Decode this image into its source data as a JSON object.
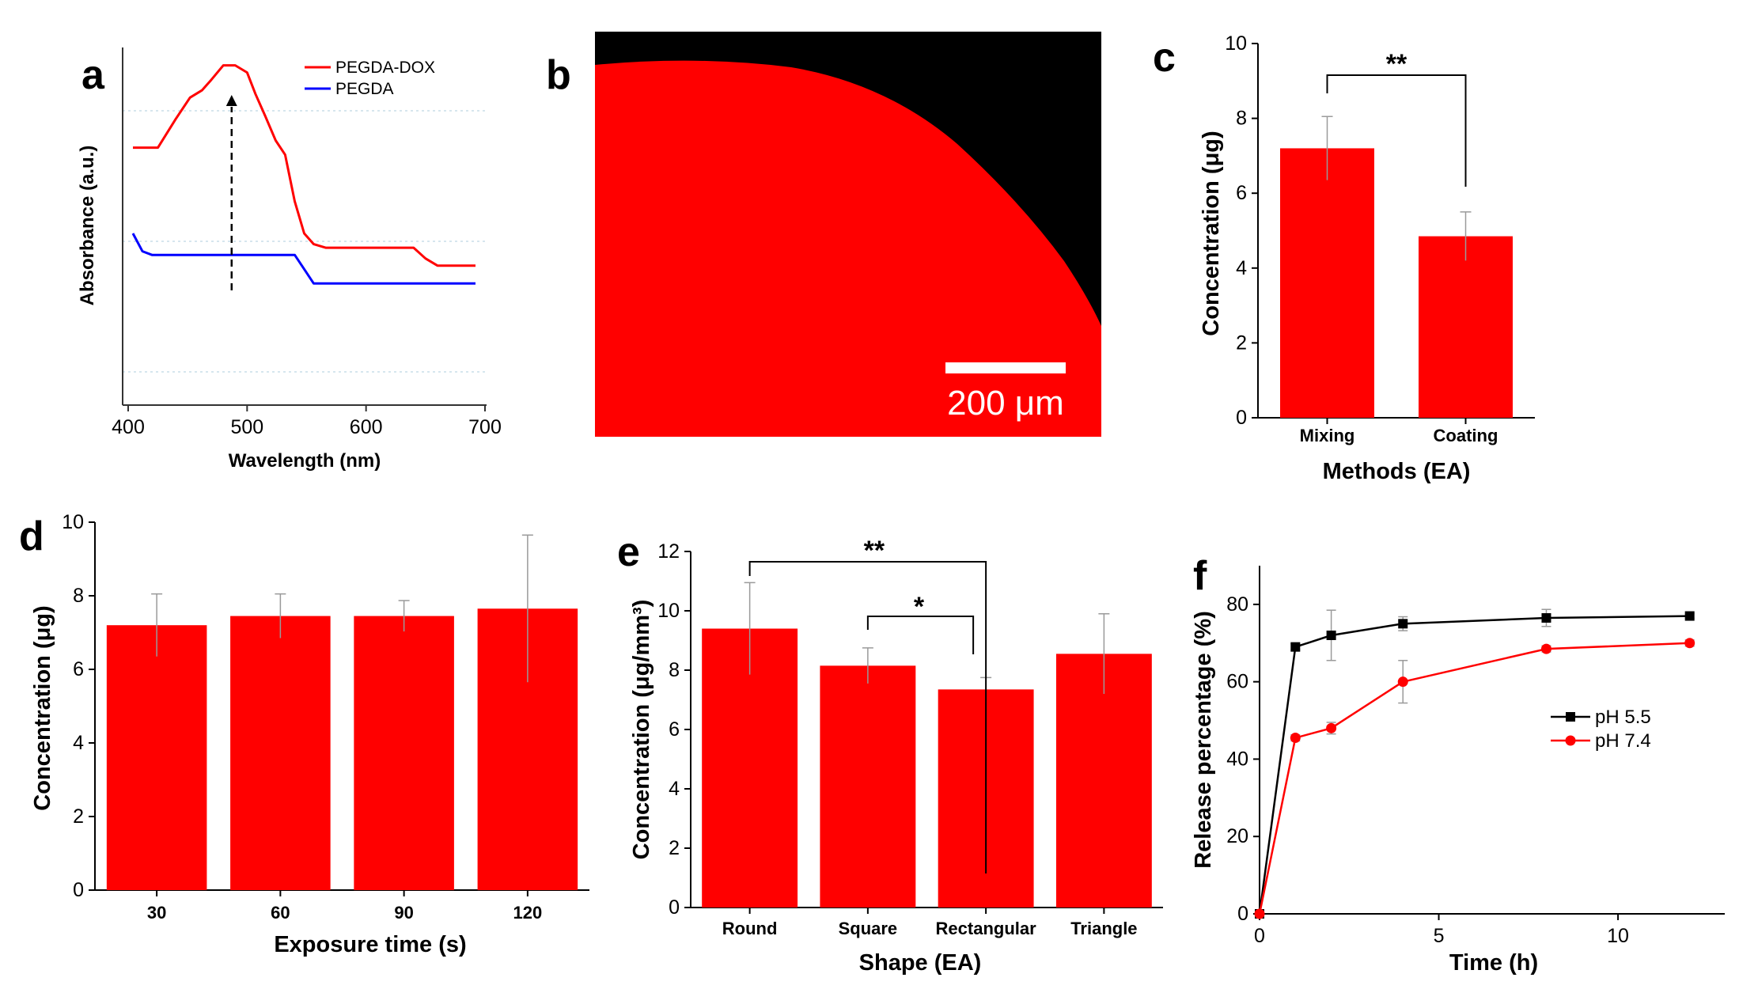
{
  "colors": {
    "red": "#ff0000",
    "blue": "#0000ff",
    "black": "#000000",
    "grid": "#c9dde8",
    "err": "#9a9a9a"
  },
  "chart_data": [
    {
      "panel": "a",
      "type": "line",
      "xlabel": "Wavelength (nm)",
      "ylabel": "Absorbance (a.u.)",
      "xlim": [
        400,
        700
      ],
      "xticks": [
        "400",
        "500",
        "600",
        "700"
      ],
      "legend": [
        "PEGDA-DOX",
        "PEGDA"
      ],
      "series": [
        {
          "name": "PEGDA-DOX",
          "color": "#ff0000",
          "x": [
            404,
            425,
            440,
            452,
            462,
            470,
            480,
            490,
            500,
            507,
            515,
            524,
            532,
            540,
            548,
            556,
            566,
            580,
            600,
            640,
            650,
            660,
            692
          ],
          "y": [
            0.72,
            0.72,
            0.8,
            0.86,
            0.88,
            0.91,
            0.95,
            0.95,
            0.93,
            0.87,
            0.81,
            0.74,
            0.7,
            0.57,
            0.48,
            0.45,
            0.44,
            0.44,
            0.44,
            0.44,
            0.41,
            0.39,
            0.39
          ]
        },
        {
          "name": "PEGDA",
          "color": "#0000ff",
          "x": [
            404,
            412,
            420,
            430,
            500,
            540,
            548,
            556,
            565,
            600,
            692
          ],
          "y": [
            0.48,
            0.43,
            0.42,
            0.42,
            0.42,
            0.42,
            0.38,
            0.34,
            0.34,
            0.34,
            0.34
          ]
        }
      ],
      "annotation": "dashed arrow at ~487 nm"
    },
    {
      "panel": "b",
      "type": "image",
      "scale_bar_label": "200 μm"
    },
    {
      "panel": "c",
      "type": "bar",
      "categories": [
        "Mixing",
        "Coating"
      ],
      "values": [
        7.2,
        4.85
      ],
      "errors": [
        0.85,
        0.65
      ],
      "ylim": [
        0,
        10
      ],
      "yticks": [
        "0",
        "2",
        "4",
        "6",
        "8",
        "10"
      ],
      "xlabel": "Methods (EA)",
      "ylabel": "Concentration (μg)",
      "significance": [
        {
          "from": 0,
          "to": 1,
          "label": "**"
        }
      ]
    },
    {
      "panel": "d",
      "type": "bar",
      "categories": [
        "30",
        "60",
        "90",
        "120"
      ],
      "values": [
        7.2,
        7.45,
        7.45,
        7.65
      ],
      "errors": [
        0.85,
        0.6,
        0.42,
        2.0
      ],
      "ylim": [
        0,
        10
      ],
      "yticks": [
        "0",
        "2",
        "4",
        "6",
        "8",
        "10"
      ],
      "xlabel": "Exposure time (s)",
      "ylabel": "Concentration (μg)"
    },
    {
      "panel": "e",
      "type": "bar",
      "categories": [
        "Round",
        "Square",
        "Rectangular",
        "Triangle"
      ],
      "values": [
        9.4,
        8.15,
        7.35,
        8.55
      ],
      "errors": [
        1.55,
        0.6,
        0.4,
        1.35
      ],
      "ylim": [
        0,
        12
      ],
      "yticks": [
        "0",
        "2",
        "4",
        "6",
        "8",
        "10",
        "12"
      ],
      "xlabel": "Shape (EA)",
      "ylabel": "Concentration (μg/mm³)",
      "significance": [
        {
          "from": 0,
          "to": 2,
          "label": "**"
        },
        {
          "from": 1,
          "to": 2,
          "label": "*"
        }
      ]
    },
    {
      "panel": "f",
      "type": "line",
      "xlim": [
        0,
        13
      ],
      "ylim": [
        0,
        90
      ],
      "xticks": [
        "0",
        "5",
        "10"
      ],
      "yticks": [
        "0",
        "20",
        "40",
        "60",
        "80"
      ],
      "xlabel": "Time (h)",
      "ylabel": "Release percentage (%)",
      "legend": [
        "pH 5.5",
        "pH 7.4"
      ],
      "series": [
        {
          "name": "pH 5.5",
          "color": "#000000",
          "marker": "square",
          "x": [
            0,
            1,
            2,
            4,
            8,
            12
          ],
          "y": [
            0,
            69,
            72,
            75,
            76.5,
            77
          ],
          "errors": [
            0,
            0.8,
            6.5,
            1.8,
            2.2,
            0.6
          ]
        },
        {
          "name": "pH 7.4",
          "color": "#ff0000",
          "marker": "circle",
          "x": [
            0,
            1,
            2,
            4,
            8,
            12
          ],
          "y": [
            0,
            45.5,
            48,
            60,
            68.5,
            70
          ],
          "errors": [
            0,
            0.8,
            1.5,
            5.5,
            0.8,
            0.8
          ]
        }
      ]
    }
  ]
}
